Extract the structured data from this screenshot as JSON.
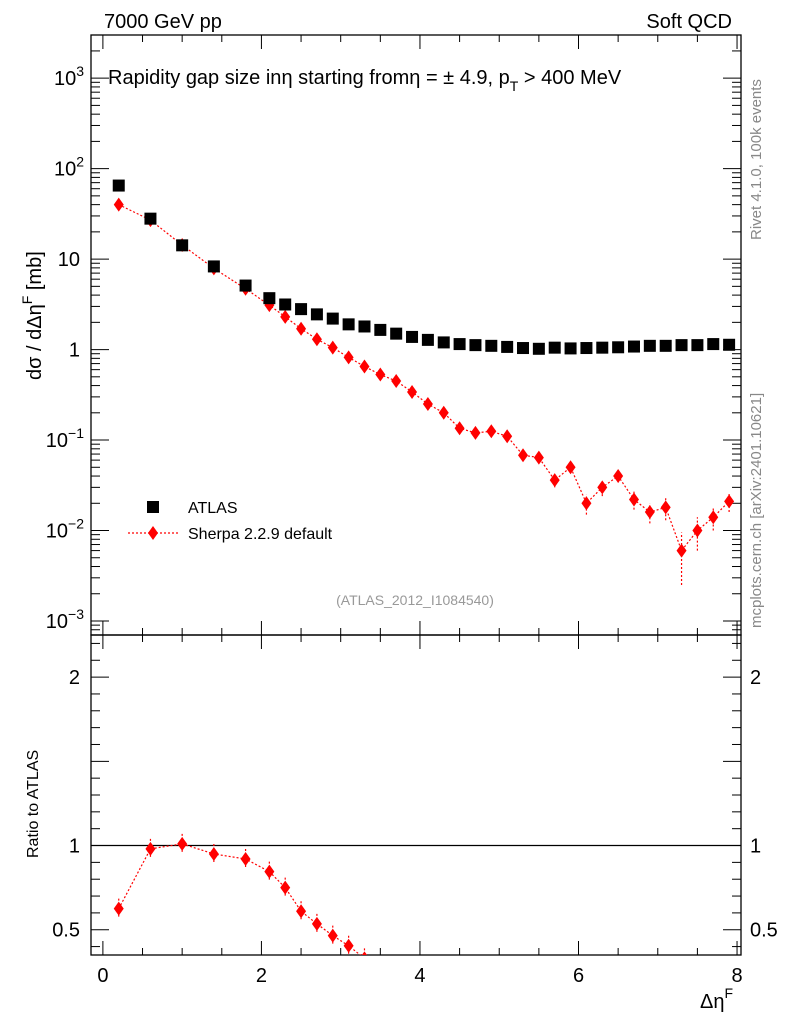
{
  "header": {
    "left": "7000 GeV pp",
    "right": "Soft QCD"
  },
  "side_labels": {
    "rivet": "Rivet 4.1.0,  100k events",
    "mcplots": "mcplots.cern.ch [arXiv:2401.10621]"
  },
  "chart_data": {
    "type": "scatter",
    "title": "Rapidity gap size in η starting from η = ± 4.9, p_T > 400 MeV",
    "title_parts": {
      "pre": "Rapidity gap size in",
      "eta1": "η",
      "mid": " starting from",
      "eta2": "η",
      "eq": " = ± 4.9, p",
      "sub": "T",
      "post": " > 400 MeV"
    },
    "watermark": "(ATLAS_2012_I1084540)",
    "ylabel": "dσ / dΔη^F [mb]",
    "ylabel_parts": {
      "main": "dσ / dΔη",
      "sup": "F",
      "unit": " [mb]"
    },
    "xlabel": "Δη^F",
    "xlabel_parts": {
      "main": "Δη",
      "sup": "F"
    },
    "ratio_ylabel": "Ratio to ATLAS",
    "xlim": [
      -0.15,
      8.05
    ],
    "ylim_log": [
      0.0007,
      3000
    ],
    "ratio_ylim": [
      0.35,
      2.25
    ],
    "x_ticks": [
      {
        "value": 0,
        "label": "0"
      },
      {
        "value": 2,
        "label": "2"
      },
      {
        "value": 4,
        "label": "4"
      },
      {
        "value": 6,
        "label": "6"
      },
      {
        "value": 8,
        "label": "8"
      }
    ],
    "y_ticks": [
      {
        "exp": -3,
        "label": "10",
        "sup": "−3"
      },
      {
        "exp": -2,
        "label": "10",
        "sup": "−2"
      },
      {
        "exp": -1,
        "label": "10",
        "sup": "−1"
      },
      {
        "exp": 0,
        "label": "1",
        "sup": ""
      },
      {
        "exp": 1,
        "label": "10",
        "sup": ""
      },
      {
        "exp": 2,
        "label": "10",
        "sup": "2"
      },
      {
        "exp": 3,
        "label": "10",
        "sup": "3"
      }
    ],
    "ratio_ticks": [
      {
        "value": 0.5,
        "label": "0.5"
      },
      {
        "value": 1,
        "label": "1"
      },
      {
        "value": 2,
        "label": "2"
      }
    ],
    "legend": {
      "position": "lower-left",
      "entries": [
        "ATLAS",
        "Sherpa 2.2.9 default"
      ]
    },
    "series": [
      {
        "name": "ATLAS",
        "color": "#000000",
        "marker": "square",
        "x": [
          0.2,
          0.6,
          1.0,
          1.4,
          1.8,
          2.1,
          2.3,
          2.5,
          2.7,
          2.9,
          3.1,
          3.3,
          3.5,
          3.7,
          3.9,
          4.1,
          4.3,
          4.5,
          4.7,
          4.9,
          5.1,
          5.3,
          5.5,
          5.7,
          5.9,
          6.1,
          6.3,
          6.5,
          6.7,
          6.9,
          7.1,
          7.3,
          7.5,
          7.7,
          7.9
        ],
        "y": [
          65,
          28,
          14.2,
          8.3,
          5.1,
          3.7,
          3.15,
          2.8,
          2.45,
          2.2,
          1.9,
          1.8,
          1.65,
          1.5,
          1.38,
          1.28,
          1.2,
          1.15,
          1.12,
          1.1,
          1.07,
          1.04,
          1.02,
          1.05,
          1.03,
          1.04,
          1.05,
          1.06,
          1.08,
          1.1,
          1.1,
          1.12,
          1.12,
          1.15,
          1.13
        ]
      },
      {
        "name": "Sherpa 2.2.9 default",
        "color": "#ff0000",
        "marker": "diamond",
        "x": [
          0.2,
          0.6,
          1.0,
          1.4,
          1.8,
          2.1,
          2.3,
          2.5,
          2.7,
          2.9,
          3.1,
          3.3,
          3.5,
          3.7,
          3.9,
          4.1,
          4.3,
          4.5,
          4.7,
          4.9,
          5.1,
          5.3,
          5.5,
          5.7,
          5.9,
          6.1,
          6.3,
          6.5,
          6.7,
          6.9,
          7.1,
          7.3,
          7.5,
          7.7,
          7.9
        ],
        "y": [
          40,
          27,
          14.3,
          7.9,
          4.7,
          3.1,
          2.3,
          1.7,
          1.3,
          1.05,
          0.82,
          0.65,
          0.53,
          0.45,
          0.34,
          0.25,
          0.2,
          0.135,
          0.12,
          0.125,
          0.11,
          0.068,
          0.064,
          0.036,
          0.05,
          0.02,
          0.03,
          0.04,
          0.022,
          0.016,
          0.018,
          0.006,
          0.01,
          0.014,
          0.021
        ],
        "y_err": [
          0.6,
          0.4,
          0.2,
          0.1,
          0.06,
          0.04,
          0.03,
          0.03,
          0.02,
          0.02,
          0.02,
          0.015,
          0.012,
          0.01,
          0.01,
          0.008,
          0.008,
          0.007,
          0.006,
          0.007,
          0.006,
          0.007,
          0.007,
          0.006,
          0.007,
          0.005,
          0.006,
          0.006,
          0.005,
          0.004,
          0.005,
          0.0035,
          0.004,
          0.004,
          0.005
        ]
      }
    ],
    "ratio_series": {
      "name": "Sherpa 2.2.9 default / ATLAS",
      "x": [
        0.2,
        0.6,
        1.0,
        1.4,
        1.8,
        2.1,
        2.3,
        2.5,
        2.7,
        2.9,
        3.1,
        3.3
      ],
      "y": [
        0.625,
        0.98,
        1.01,
        0.95,
        0.92,
        0.845,
        0.75,
        0.61,
        0.535,
        0.465,
        0.405,
        0.33
      ]
    }
  }
}
